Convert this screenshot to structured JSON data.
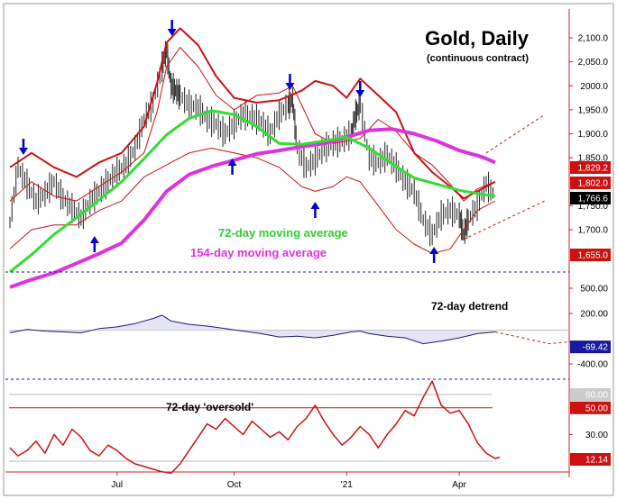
{
  "chart_data": {
    "type": "line",
    "title": "Gold, Daily",
    "subtitle": "(continuous contract)",
    "x_tick_labels": [
      "Jul",
      "Oct",
      "'21",
      "Apr"
    ],
    "colors": {
      "price": "#222222",
      "ma72": "#33dd33",
      "ma154": "#dd33dd",
      "envelope": "#cc1111",
      "arrow": "#0000cc",
      "separator": "#1a1aa0"
    },
    "price_panel": {
      "y_tick_labels": [
        "2,100.0",
        "2,050.0",
        "2000.0",
        "1,950.0",
        "1,900.0",
        "1,850.0",
        "1,750.0",
        "1,700.0"
      ],
      "badges": [
        {
          "value": "1,829.2",
          "bg": "#cc1111",
          "fg": "#ffffff"
        },
        {
          "value": "1,802.0",
          "bg": "#cc1111",
          "fg": "#ffffff"
        },
        {
          "value": "1,766.6",
          "bg": "#000000",
          "fg": "#ffffff"
        },
        {
          "value": "1,655.0",
          "bg": "#cc1111",
          "fg": "#ffffff"
        }
      ],
      "series": [
        {
          "name": "72-day moving average",
          "x": [
            1,
            25,
            50,
            75,
            100,
            125,
            150,
            175,
            200,
            225,
            250,
            275,
            300,
            325,
            350,
            375,
            400,
            425,
            450,
            475,
            500,
            525,
            540
          ],
          "y": [
            1612,
            1648,
            1690,
            1725,
            1762,
            1800,
            1848,
            1898,
            1932,
            1948,
            1940,
            1915,
            1880,
            1878,
            1885,
            1893,
            1870,
            1838,
            1808,
            1795,
            1782,
            1774,
            1770
          ]
        },
        {
          "name": "154-day moving average",
          "x": [
            1,
            25,
            50,
            75,
            100,
            125,
            150,
            175,
            200,
            225,
            250,
            275,
            300,
            325,
            350,
            375,
            400,
            425,
            450,
            475,
            500,
            525,
            540
          ],
          "y": [
            1580,
            1596,
            1610,
            1630,
            1650,
            1672,
            1720,
            1780,
            1815,
            1832,
            1845,
            1858,
            1865,
            1873,
            1880,
            1893,
            1907,
            1910,
            1900,
            1885,
            1865,
            1852,
            1840
          ]
        }
      ],
      "price_bars": {
        "x": [
          1,
          10,
          20,
          30,
          40,
          50,
          60,
          70,
          80,
          90,
          100,
          110,
          120,
          130,
          140,
          150,
          160,
          170,
          175,
          180,
          185,
          190,
          200,
          210,
          220,
          230,
          240,
          250,
          260,
          270,
          280,
          290,
          300,
          310,
          315,
          320,
          330,
          340,
          350,
          360,
          370,
          380,
          385,
          390,
          400,
          410,
          420,
          430,
          440,
          450,
          460,
          470,
          480,
          490,
          500,
          505,
          510,
          520,
          530,
          540
        ],
        "y": [
          1715,
          1830,
          1795,
          1760,
          1775,
          1800,
          1765,
          1745,
          1725,
          1758,
          1780,
          1800,
          1820,
          1835,
          1870,
          1930,
          1965,
          2040,
          2075,
          2000,
          1990,
          1980,
          1960,
          1955,
          1930,
          1920,
          1900,
          1920,
          1940,
          1935,
          1925,
          1900,
          1940,
          1960,
          1970,
          1870,
          1830,
          1845,
          1870,
          1880,
          1885,
          1900,
          1940,
          1960,
          1850,
          1840,
          1855,
          1830,
          1800,
          1780,
          1720,
          1690,
          1730,
          1740,
          1730,
          1690,
          1720,
          1750,
          1795,
          1770
        ]
      },
      "envelope_upper": {
        "x": [
          1,
          25,
          50,
          75,
          100,
          125,
          150,
          165,
          175,
          190,
          210,
          230,
          250,
          275,
          300,
          325,
          340,
          360,
          375,
          390,
          410,
          430,
          450,
          470,
          490,
          505,
          520,
          540
        ],
        "y": [
          1830,
          1860,
          1830,
          1810,
          1840,
          1860,
          1915,
          2010,
          2090,
          2120,
          2085,
          2020,
          1975,
          1965,
          1970,
          1990,
          2010,
          2000,
          1975,
          2015,
          1980,
          1945,
          1860,
          1820,
          1790,
          1765,
          1780,
          1800
        ]
      },
      "envelope_inner": {
        "x": [
          1,
          25,
          50,
          75,
          100,
          125,
          150,
          165,
          175,
          190,
          210,
          230,
          250,
          275,
          300,
          315,
          325,
          340,
          360,
          375,
          390,
          410,
          430,
          450,
          470,
          490,
          505,
          520,
          540
        ],
        "y": [
          1760,
          1800,
          1770,
          1760,
          1790,
          1820,
          1860,
          1950,
          2040,
          2080,
          2040,
          1980,
          1950,
          1980,
          1985,
          2000,
          1960,
          1900,
          1880,
          1885,
          1890,
          1930,
          1905,
          1860,
          1835,
          1795,
          1760,
          1785,
          1800
        ]
      },
      "envelope_lower": {
        "x": [
          1,
          25,
          50,
          75,
          100,
          125,
          150,
          175,
          200,
          225,
          250,
          275,
          300,
          325,
          340,
          360,
          375,
          390,
          410,
          430,
          450,
          470,
          490,
          505,
          520,
          540
        ],
        "y": [
          1660,
          1700,
          1710,
          1710,
          1740,
          1760,
          1810,
          1835,
          1860,
          1870,
          1860,
          1850,
          1830,
          1790,
          1780,
          1790,
          1810,
          1800,
          1750,
          1700,
          1670,
          1650,
          1660,
          1700,
          1740,
          1760
        ]
      },
      "projection_upper": {
        "x": [
          530,
          595
        ],
        "y": [
          1860,
          1940
        ]
      },
      "projection_lower": {
        "x": [
          505,
          595
        ],
        "y": [
          1680,
          1760
        ]
      },
      "arrows_down_x": [
        16,
        181,
        312,
        390
      ],
      "arrows_up_x": [
        95,
        248,
        340,
        472
      ],
      "annotations": [
        "72-day moving average",
        "154-day moving average"
      ]
    },
    "detrend_panel": {
      "label": "72-day detrend",
      "y_tick_labels": [
        "500.00",
        "200.00",
        "-400.00"
      ],
      "badges": [
        {
          "value": "-69.42",
          "bg": "#1a1aa0",
          "fg": "#ffffff"
        }
      ],
      "series": {
        "x": [
          1,
          20,
          40,
          60,
          80,
          100,
          120,
          140,
          160,
          170,
          180,
          190,
          200,
          220,
          240,
          260,
          280,
          300,
          320,
          340,
          360,
          380,
          390,
          400,
          420,
          440,
          460,
          480,
          500,
          520,
          540
        ],
        "y": [
          -30,
          10,
          -10,
          -20,
          -30,
          20,
          40,
          80,
          140,
          180,
          110,
          90,
          70,
          50,
          20,
          -10,
          -40,
          -80,
          -70,
          -90,
          -60,
          -20,
          -10,
          -40,
          -70,
          -90,
          -160,
          -130,
          -90,
          -40,
          -20
        ]
      },
      "projection": {
        "x": [
          540,
          600,
          630
        ],
        "y": [
          -20,
          -160,
          -130
        ]
      }
    },
    "oversold_panel": {
      "label": "72-day 'oversold'",
      "y_tick_labels": [
        "30.00"
      ],
      "badges": [
        {
          "value": "60.00",
          "bg": "#cccccc",
          "fg": "#ffffff"
        },
        {
          "value": "50.00",
          "bg": "#cc1111",
          "fg": "#ffffff"
        },
        {
          "value": "12.14",
          "bg": "#cc1111",
          "fg": "#ffffff"
        }
      ],
      "reference_lines": [
        60,
        50,
        10
      ],
      "series": {
        "x": [
          1,
          10,
          20,
          30,
          40,
          50,
          60,
          70,
          80,
          90,
          100,
          110,
          120,
          130,
          140,
          150,
          160,
          170,
          180,
          190,
          200,
          210,
          220,
          230,
          240,
          250,
          260,
          270,
          280,
          290,
          300,
          310,
          320,
          330,
          340,
          350,
          360,
          370,
          380,
          390,
          400,
          410,
          420,
          430,
          440,
          450,
          460,
          470,
          480,
          490,
          500,
          510,
          520,
          530,
          540,
          545
        ],
        "y": [
          20,
          14,
          18,
          25,
          16,
          30,
          22,
          34,
          28,
          18,
          14,
          22,
          18,
          12,
          8,
          6,
          4,
          2,
          1,
          8,
          18,
          28,
          38,
          34,
          42,
          36,
          30,
          40,
          34,
          28,
          32,
          26,
          36,
          42,
          52,
          40,
          30,
          22,
          28,
          36,
          30,
          20,
          30,
          38,
          48,
          44,
          58,
          70,
          52,
          46,
          48,
          38,
          24,
          16,
          12,
          13
        ]
      }
    }
  }
}
